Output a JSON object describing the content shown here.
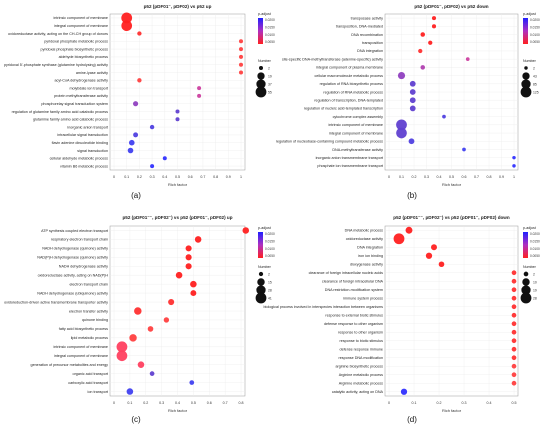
{
  "figure_panel_labels": [
    "(a)",
    "(b)",
    "(c)",
    "(d)"
  ],
  "chart_data": [
    {
      "type": "scatter",
      "panel_label": "(a)",
      "title": "p52 (pDF01⁻, pDF02) vs p52 up",
      "xlabel": "Rich factor",
      "xlim": [
        0,
        1
      ],
      "xticks": [
        "0",
        "0.1",
        "0.2",
        "0.3",
        "0.4",
        "0.5",
        "0.6",
        "0.7",
        "0.8",
        "0.9",
        "1"
      ],
      "color_legend": {
        "title": "p-adjust",
        "ticks": [
          "0.0050",
          "0.0100",
          "0.0150",
          "0.0200"
        ],
        "low_color": "#ff2020",
        "high_color": "#2020ff"
      },
      "size_legend": {
        "title": "Number",
        "values": [
          "2",
          "19",
          "37",
          "55"
        ]
      },
      "terms": [
        {
          "label": "intrinsic component of membrane",
          "x": 0.1,
          "size": 55,
          "color": "#ff2020"
        },
        {
          "label": "integral component of membrane",
          "x": 0.1,
          "size": 53,
          "color": "#ff2020"
        },
        {
          "label": "oxidoreductase activity, acting on the CH-CH group of donors",
          "x": 0.2,
          "size": 3,
          "color": "#ff3030"
        },
        {
          "label": "pyridoxal phosphate metabolic process",
          "x": 1.0,
          "size": 2,
          "color": "#ff4040"
        },
        {
          "label": "pyridoxal phosphate biosynthetic process",
          "x": 1.0,
          "size": 2,
          "color": "#ff4040"
        },
        {
          "label": "aldehyde biosynthetic process",
          "x": 1.0,
          "size": 2,
          "color": "#ff4040"
        },
        {
          "label": "pyridoxal 5'-phosphate synthase (glutamine hydrolysing) activity",
          "x": 1.0,
          "size": 2,
          "color": "#ff4040"
        },
        {
          "label": "amine-lyase activity",
          "x": 1.0,
          "size": 2,
          "color": "#ff4040"
        },
        {
          "label": "acyl-CoA dehydrogenase activity",
          "x": 0.2,
          "size": 3,
          "color": "#ff4040"
        },
        {
          "label": "molybdate ion transport",
          "x": 0.67,
          "size": 2,
          "color": "#cc40a0"
        },
        {
          "label": "protein methyltransferase activity",
          "x": 0.67,
          "size": 2,
          "color": "#cc40a0"
        },
        {
          "label": "phosphorelay signal transduction system",
          "x": 0.17,
          "size": 6,
          "color": "#9040c0"
        },
        {
          "label": "regulation of glutamine family amino acid catabolic process",
          "x": 0.5,
          "size": 2,
          "color": "#6040d0"
        },
        {
          "label": "glutamine family amino acid catabolic process",
          "x": 0.5,
          "size": 2,
          "color": "#6040d0"
        },
        {
          "label": "inorganic anion transport",
          "x": 0.3,
          "size": 3,
          "color": "#5040e0"
        },
        {
          "label": "intracellular signal transduction",
          "x": 0.17,
          "size": 5,
          "color": "#5040e0"
        },
        {
          "label": "flavin adenine dinucleotide binding",
          "x": 0.14,
          "size": 8,
          "color": "#4040f0"
        },
        {
          "label": "signal transduction",
          "x": 0.13,
          "size": 8,
          "color": "#4040f0"
        },
        {
          "label": "cellular aldehyde metabolic process",
          "x": 0.4,
          "size": 2,
          "color": "#3030ff"
        },
        {
          "label": "vitamin B6 metabolic process",
          "x": 0.3,
          "size": 2,
          "color": "#3030ff"
        }
      ]
    },
    {
      "type": "scatter",
      "panel_label": "(b)",
      "title": "p52 (pDF01⁻, pDF02) vs p52 down",
      "xlabel": "Rich factor",
      "xlim": [
        0,
        1
      ],
      "xticks": [
        "0",
        "0.1",
        "0.2",
        "0.3",
        "0.4",
        "0.5",
        "0.6",
        "0.7",
        "0.8",
        "0.9",
        "1"
      ],
      "color_legend": {
        "title": "p-adjust",
        "ticks": [
          "0.0050",
          "0.0100",
          "0.0150",
          "0.0200"
        ],
        "low_color": "#ff2020",
        "high_color": "#2020ff"
      },
      "size_legend": {
        "title": "Number",
        "values": [
          "2",
          "43",
          "85",
          "125"
        ]
      },
      "terms": [
        {
          "label": "transposase activity",
          "x": 0.36,
          "size": 5,
          "color": "#ff2020"
        },
        {
          "label": "transposition, DNA-mediated",
          "x": 0.36,
          "size": 5,
          "color": "#ff2020"
        },
        {
          "label": "DNA recombination",
          "x": 0.27,
          "size": 8,
          "color": "#ff2020"
        },
        {
          "label": "transposition",
          "x": 0.33,
          "size": 6,
          "color": "#ff2020"
        },
        {
          "label": "DNA integration",
          "x": 0.25,
          "size": 6,
          "color": "#ff3030"
        },
        {
          "label": "site-specific DNA-methyltransferase (adenine-specific) activity",
          "x": 0.63,
          "size": 3,
          "color": "#cc40a0"
        },
        {
          "label": "integral component of plasma membrane",
          "x": 0.27,
          "size": 8,
          "color": "#b040b0"
        },
        {
          "label": "cellular macromolecule metabolic process",
          "x": 0.1,
          "size": 40,
          "color": "#9040c0"
        },
        {
          "label": "regulation of RNA biosynthetic process",
          "x": 0.19,
          "size": 20,
          "color": "#6040d0"
        },
        {
          "label": "regulation of RNA metabolic process",
          "x": 0.19,
          "size": 20,
          "color": "#6040d0"
        },
        {
          "label": "regulation of transcription, DNA-templated",
          "x": 0.19,
          "size": 20,
          "color": "#6040d0"
        },
        {
          "label": "regulation of nucleic acid-templated transcription",
          "x": 0.19,
          "size": 20,
          "color": "#6040d0"
        },
        {
          "label": "cytochrome complex assembly",
          "x": 0.44,
          "size": 3,
          "color": "#5040e0"
        },
        {
          "label": "intrinsic component of membrane",
          "x": 0.1,
          "size": 125,
          "color": "#6040d0"
        },
        {
          "label": "integral component of membrane",
          "x": 0.1,
          "size": 120,
          "color": "#6040d0"
        },
        {
          "label": "regulation of nucleobase-containing compound metabolic process",
          "x": 0.18,
          "size": 20,
          "color": "#5040e0"
        },
        {
          "label": "DNA-methyltransferase activity",
          "x": 0.6,
          "size": 3,
          "color": "#4040f0"
        },
        {
          "label": "inorganic anion transmembrane transport",
          "x": 1.0,
          "size": 2,
          "color": "#3030ff"
        },
        {
          "label": "phosphate ion transmembrane transport",
          "x": 1.0,
          "size": 2,
          "color": "#3030ff"
        }
      ]
    },
    {
      "type": "scatter",
      "panel_label": "(c)",
      "title": "p52 (pDF01⁻⁻, pDF02⁻) vs p52 (pDF01⁻, pDF02) up",
      "xlabel": "Rich factor",
      "xlim": [
        0,
        0.8
      ],
      "xticks": [
        "0",
        "0.1",
        "0.2",
        "0.3",
        "0.4",
        "0.5",
        "0.6",
        "0.7",
        "0.8"
      ],
      "color_legend": {
        "title": "p-adjust",
        "ticks": [
          "0.0050",
          "0.0100",
          "0.0150",
          "0.0200"
        ],
        "low_color": "#ff2020",
        "high_color": "#2020ff"
      },
      "size_legend": {
        "title": "Number",
        "values": [
          "2",
          "15",
          "28",
          "41"
        ]
      },
      "terms": [
        {
          "label": "ATP synthesis coupled electron transport",
          "x": 0.83,
          "size": 10,
          "color": "#ff2020"
        },
        {
          "label": "respiratory electron transport chain",
          "x": 0.53,
          "size": 10,
          "color": "#ff2020"
        },
        {
          "label": "NADH dehydrogenase (quinone) activity",
          "x": 0.47,
          "size": 8,
          "color": "#ff2020"
        },
        {
          "label": "NAD(P)H dehydrogenase (quinone) activity",
          "x": 0.47,
          "size": 8,
          "color": "#ff2020"
        },
        {
          "label": "NADH dehydrogenase activity",
          "x": 0.47,
          "size": 8,
          "color": "#ff2020"
        },
        {
          "label": "oxidoreductase activity, acting on NAD(P)H",
          "x": 0.41,
          "size": 10,
          "color": "#ff2020"
        },
        {
          "label": "electron transport chain",
          "x": 0.5,
          "size": 10,
          "color": "#ff2020"
        },
        {
          "label": "NADH dehydrogenase (ubiquinone) activity",
          "x": 0.5,
          "size": 7,
          "color": "#ff2020"
        },
        {
          "label": "oxidoreduction-driven active transmembrane transporter activity",
          "x": 0.36,
          "size": 8,
          "color": "#ff3030"
        },
        {
          "label": "electron transfer activity",
          "x": 0.15,
          "size": 15,
          "color": "#ff3030"
        },
        {
          "label": "quinone binding",
          "x": 0.33,
          "size": 5,
          "color": "#ff4040"
        },
        {
          "label": "fatty acid biosynthetic process",
          "x": 0.23,
          "size": 6,
          "color": "#ff4040"
        },
        {
          "label": "lipid metabolic process",
          "x": 0.12,
          "size": 15,
          "color": "#ff4040"
        },
        {
          "label": "intrinsic component of membrane",
          "x": 0.05,
          "size": 41,
          "color": "#ff4060"
        },
        {
          "label": "integral component of membrane",
          "x": 0.05,
          "size": 40,
          "color": "#ff4060"
        },
        {
          "label": "generation of precursor metabolites and energy",
          "x": 0.17,
          "size": 10,
          "color": "#ff4060"
        },
        {
          "label": "organic acid transport",
          "x": 0.24,
          "size": 3,
          "color": "#6040d0"
        },
        {
          "label": "carboxylic acid transport",
          "x": 0.49,
          "size": 3,
          "color": "#4040f0"
        },
        {
          "label": "ion transport",
          "x": 0.1,
          "size": 10,
          "color": "#4040f0"
        }
      ]
    },
    {
      "type": "scatter",
      "panel_label": "(d)",
      "title": "p52 (pDF01⁻⁻, pDF02⁻) vs p52 (pDF01⁻, pDF02) down",
      "xlabel": "Rich factor",
      "xlim": [
        0,
        0.5
      ],
      "xticks": [
        "0",
        "0.1",
        "0.2",
        "0.3",
        "0.4",
        "0.5"
      ],
      "color_legend": {
        "title": "p-adjust",
        "ticks": [
          "0.0050",
          "0.0100",
          "0.0150",
          "0.0200"
        ],
        "low_color": "#ff2020",
        "high_color": "#2020ff"
      },
      "size_legend": {
        "title": "Number",
        "values": [
          "2",
          "10",
          "19",
          "28"
        ]
      },
      "terms": [
        {
          "label": "DNA metabolic process",
          "x": 0.08,
          "size": 8,
          "color": "#ff2020"
        },
        {
          "label": "oxidoreductase activity",
          "x": 0.04,
          "size": 28,
          "color": "#ff2020"
        },
        {
          "label": "DNA integration",
          "x": 0.18,
          "size": 5,
          "color": "#ff2020"
        },
        {
          "label": "iron ion binding",
          "x": 0.16,
          "size": 6,
          "color": "#ff2020"
        },
        {
          "label": "dioxygenase activity",
          "x": 0.21,
          "size": 4,
          "color": "#ff2020"
        },
        {
          "label": "clearance of foreign intracellular nucleic acids",
          "x": 0.5,
          "size": 2,
          "color": "#ff3030"
        },
        {
          "label": "clearance of foreign intracellular DNA",
          "x": 0.5,
          "size": 2,
          "color": "#ff3030"
        },
        {
          "label": "DNA restriction-modification system",
          "x": 0.5,
          "size": 2,
          "color": "#ff3030"
        },
        {
          "label": "immune system process",
          "x": 0.5,
          "size": 2,
          "color": "#ff3030"
        },
        {
          "label": "biological process involved in interspecies interaction between organisms",
          "x": 0.5,
          "size": 2,
          "color": "#ff3030"
        },
        {
          "label": "response to external biotic stimulus",
          "x": 0.5,
          "size": 2,
          "color": "#ff3030"
        },
        {
          "label": "defense response to other organism",
          "x": 0.5,
          "size": 2,
          "color": "#ff3030"
        },
        {
          "label": "response to other organism",
          "x": 0.5,
          "size": 2,
          "color": "#ff3030"
        },
        {
          "label": "response to biotic stimulus",
          "x": 0.5,
          "size": 2,
          "color": "#ff3030"
        },
        {
          "label": "defense response immune",
          "x": 0.5,
          "size": 2,
          "color": "#ff3030"
        },
        {
          "label": "response DNA modification",
          "x": 0.5,
          "size": 2,
          "color": "#ff3030"
        },
        {
          "label": "arginine biosynthetic process",
          "x": 0.5,
          "size": 2,
          "color": "#ff4040"
        },
        {
          "label": "Arginine metabolic process",
          "x": 0.5,
          "size": 2,
          "color": "#ff4040"
        },
        {
          "label": "Arginine metabolic process",
          "x": 0.5,
          "size": 2,
          "color": "#ff4040"
        },
        {
          "label": "catalytic activity, acting on DNA",
          "x": 0.06,
          "size": 6,
          "color": "#3030ff"
        }
      ]
    }
  ]
}
